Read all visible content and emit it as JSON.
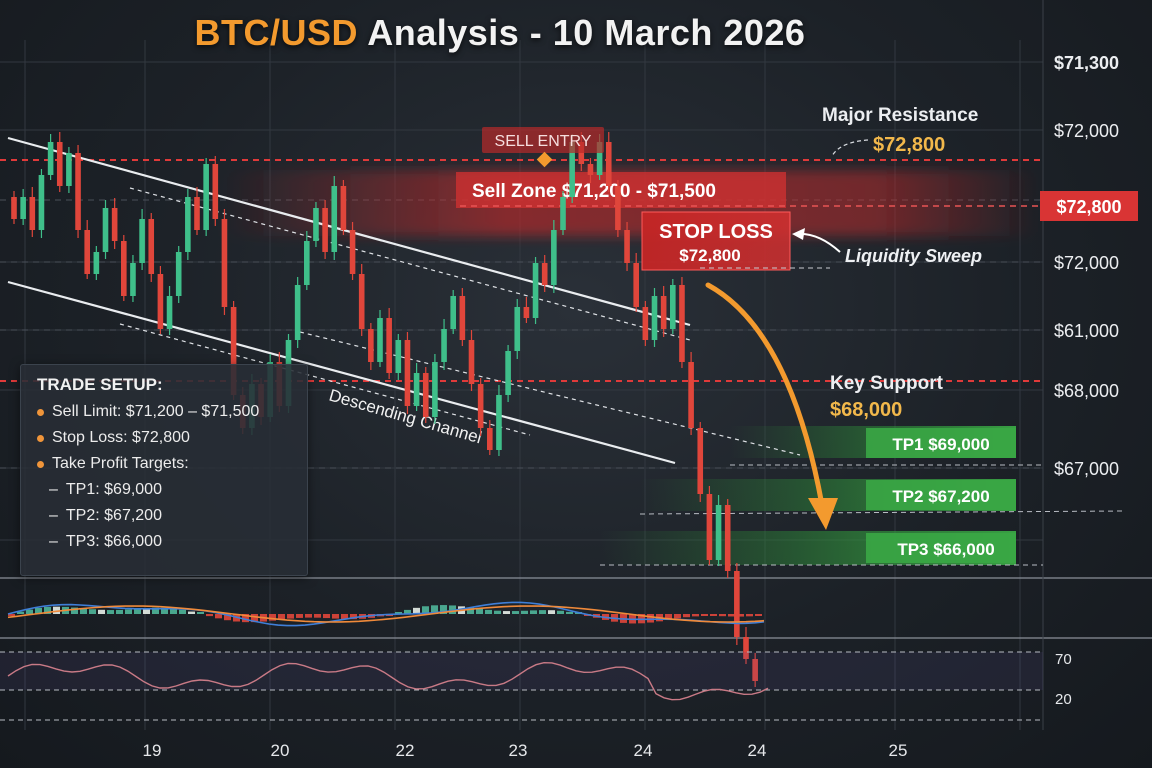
{
  "title": {
    "pair": "BTC/USD",
    "rest": "Analysis - 10 March 2026"
  },
  "price_axis": {
    "ticks": [
      {
        "label": "$71,300"
      },
      {
        "label": "$72,000"
      },
      {
        "label": "$72,800",
        "highlight": true
      },
      {
        "label": "$72,000"
      },
      {
        "label": "$61,000"
      },
      {
        "label": "$68,000"
      },
      {
        "label": "$67,000"
      }
    ]
  },
  "time_axis": {
    "ticks": [
      "19",
      "20",
      "22",
      "23",
      "24",
      "24",
      "25"
    ]
  },
  "annotations": {
    "sell_entry": "SELL ENTRY",
    "sell_zone": "Sell Zone $71,200 - $71,500",
    "stop_loss_title": "STOP LOSS",
    "stop_loss_value": "$72,800",
    "liquidity_sweep": "Liquidity Sweep",
    "major_resistance_title": "Major Resistance",
    "major_resistance_value": "$72,800",
    "key_support_title": "Key Support",
    "key_support_value": "$68,000",
    "descending_channel": "Descending Channel",
    "tp1": "TP1 $69,000",
    "tp2": "TP2 $67,200",
    "tp3": "TP3 $66,000"
  },
  "trade_setup": {
    "heading": "TRADE SETUP:",
    "sell_limit": "Sell Limit: $71,200 – $71,500",
    "stop_loss": "Stop Loss: $72,800",
    "targets_heading": "Take Profit Targets:",
    "targets": [
      "TP1: $69,000",
      "TP2: $67,200",
      "TP3: $66,000"
    ]
  },
  "rsi": {
    "levels": [
      "70",
      "20"
    ]
  },
  "colors": {
    "accent": "#f39a2e",
    "bull": "#3fbf8a",
    "bear": "#e0463b",
    "resistance": "#e03a3a",
    "target": "#3aa745",
    "gold": "#f2b84b"
  },
  "chart_data": {
    "type": "candlestick",
    "title": "BTC/USD Analysis - 10 March 2026",
    "x_ticks": [
      "19",
      "20",
      "22",
      "23",
      "24",
      "24",
      "25"
    ],
    "close": [
      71.9,
      72.1,
      71.8,
      72.3,
      72.6,
      72.2,
      72.5,
      71.8,
      71.4,
      71.6,
      72.0,
      71.7,
      71.2,
      71.5,
      71.9,
      71.4,
      70.9,
      71.2,
      71.6,
      72.1,
      71.8,
      72.4,
      71.9,
      71.1,
      70.3,
      70.0,
      70.4,
      70.1,
      70.6,
      70.2,
      70.8,
      71.3,
      71.7,
      72.0,
      71.6,
      72.2,
      71.8,
      71.4,
      70.9,
      70.6,
      71.0,
      70.5,
      70.8,
      70.2,
      70.5,
      70.1,
      70.6,
      70.9,
      71.2,
      70.8,
      70.4,
      70.0,
      69.8,
      70.3,
      70.7,
      71.1,
      71.0,
      71.5,
      71.3,
      71.8,
      72.1,
      72.6,
      72.4,
      72.3,
      72.6,
      72.2,
      71.8,
      71.5,
      71.1,
      70.8,
      71.2,
      70.9,
      71.3,
      70.6,
      70.0,
      69.4,
      68.8,
      69.3,
      68.7,
      68.1,
      67.9,
      67.7
    ]
  }
}
